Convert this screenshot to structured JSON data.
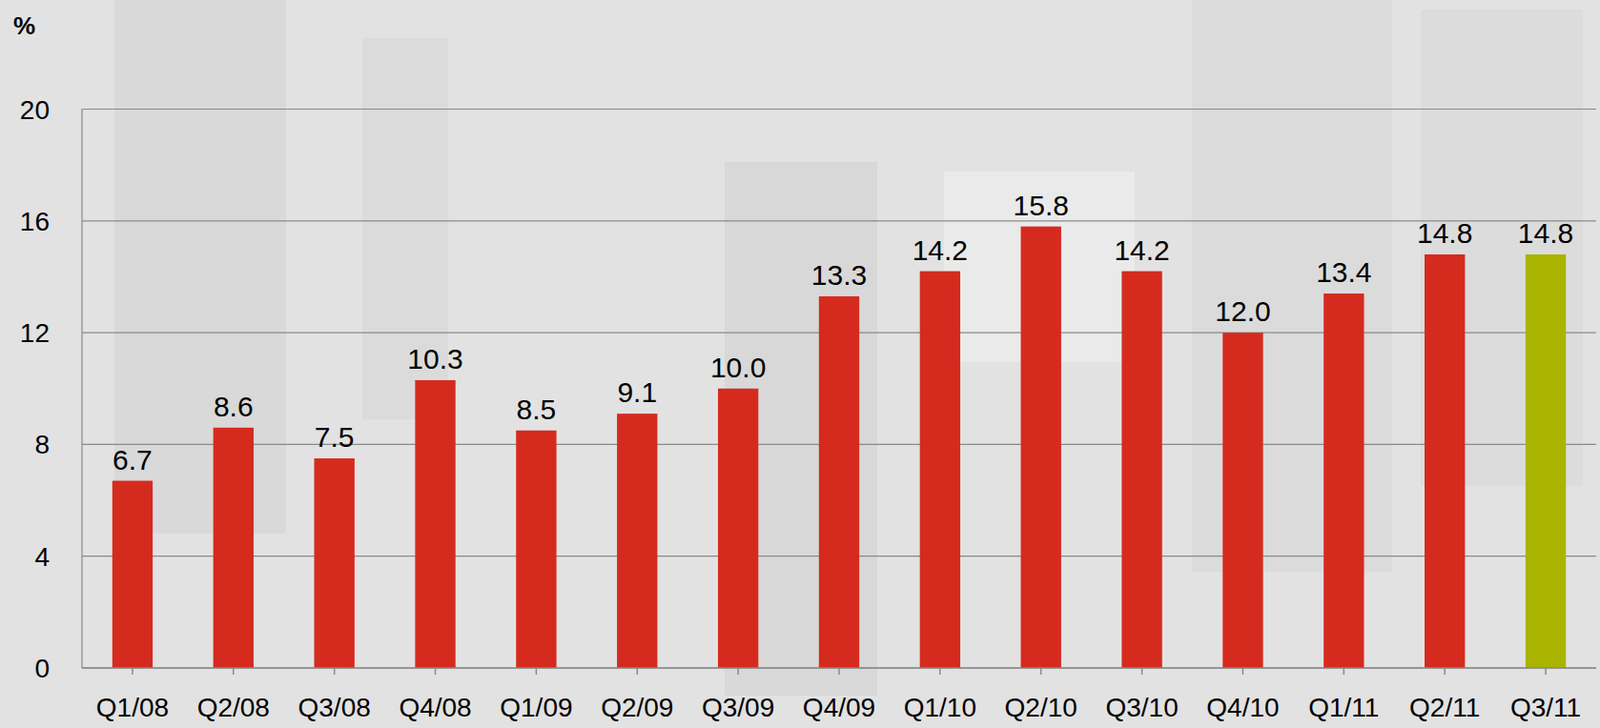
{
  "chart_data": {
    "type": "bar",
    "y_label": "%",
    "categories": [
      "Q1/08",
      "Q2/08",
      "Q3/08",
      "Q4/08",
      "Q1/09",
      "Q2/09",
      "Q3/09",
      "Q4/09",
      "Q1/10",
      "Q2/10",
      "Q3/10",
      "Q4/10",
      "Q1/11",
      "Q2/11",
      "Q3/11"
    ],
    "values": [
      6.7,
      8.6,
      7.5,
      10.3,
      8.5,
      9.1,
      10.0,
      13.3,
      14.2,
      15.8,
      14.2,
      12.0,
      13.4,
      14.8,
      14.8
    ],
    "value_labels": [
      "6.7",
      "8.6",
      "7.5",
      "10.3",
      "8.5",
      "9.1",
      "10.0",
      "13.3",
      "14.2",
      "15.8",
      "14.2",
      "12.0",
      "13.4",
      "14.8",
      "14.8"
    ],
    "colors": [
      "#d52b1e",
      "#d52b1e",
      "#d52b1e",
      "#d52b1e",
      "#d52b1e",
      "#d52b1e",
      "#d52b1e",
      "#d52b1e",
      "#d52b1e",
      "#d52b1e",
      "#d52b1e",
      "#d52b1e",
      "#d52b1e",
      "#d52b1e",
      "#a9b400"
    ],
    "ylim": [
      0,
      20
    ],
    "yticks": [
      0,
      4,
      8,
      12,
      16,
      20
    ],
    "grid": true,
    "data_labels": true
  }
}
